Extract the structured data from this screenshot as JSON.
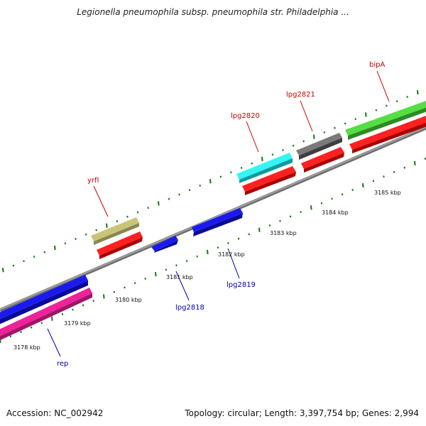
{
  "title": "Legionella pneumophila subsp. pneumophila str. Philadelphia ...",
  "footer": {
    "accession": "Accession: NC_002942",
    "summary": "Topology: circular; Length: 3,397,754 bp; Genes: 2,994"
  },
  "ruler": {
    "labels": [
      "3178 kbp",
      "3179 kbp",
      "3180 kbp",
      "3181 kbp",
      "3182 kbp",
      "3183 kbp",
      "3184 kbp",
      "3185 kbp"
    ]
  },
  "colors": {
    "backbone": "#888888",
    "tick_major": "#117711",
    "tick_minor": "#117711",
    "label_forward": "#cc0000",
    "label_reverse": "#0000aa"
  },
  "genes_forward": [
    {
      "label": "yrfI",
      "color": "#bcb870",
      "cds_color": "#ee1111"
    },
    {
      "label": "lpg2820",
      "color": "#22eeee",
      "cds_color": "#ee1111"
    },
    {
      "label": "lpg2821",
      "color": "#666666",
      "cds_color": "#ee1111"
    },
    {
      "label": "bipA",
      "color": "#44cc33",
      "cds_color": "#ee1111"
    }
  ],
  "genes_reverse": [
    {
      "label": "rep",
      "color": "#ee2299"
    },
    {
      "label": "lpg2818",
      "color": "#1111dd"
    },
    {
      "label": "lpg2819",
      "color": "#1111dd"
    },
    {
      "label": "",
      "color": "#1111dd"
    }
  ]
}
